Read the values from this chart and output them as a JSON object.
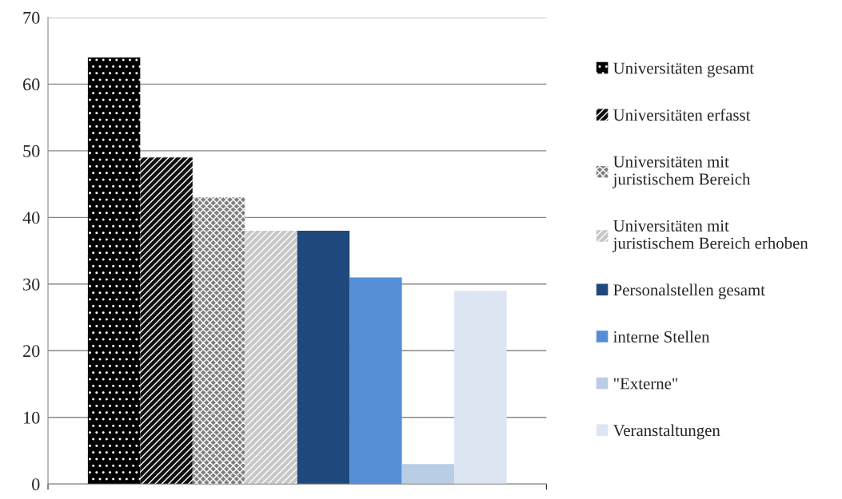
{
  "chart_data": {
    "type": "bar",
    "categories": [
      null
    ],
    "series": [
      {
        "name": "Universitäten gesamt",
        "color": "#000000",
        "values": [
          64
        ]
      },
      {
        "name": "Universitäten erfasst",
        "color": "#111111",
        "values": [
          49
        ]
      },
      {
        "name": "Universitäten mit juristischem Bereich",
        "color": "#7f7f7f",
        "values": [
          43
        ]
      },
      {
        "name": "Universitäten mit juristischem Bereich erhoben",
        "color": "#c8c8c8",
        "values": [
          38
        ]
      },
      {
        "name": "Personalstellen gesamt",
        "color": "#1f497d",
        "values": [
          38
        ]
      },
      {
        "name": "interne Stellen",
        "color": "#558ed5",
        "values": [
          31
        ]
      },
      {
        "name": "\"Externe\"",
        "color": "#b9cde5",
        "values": [
          3
        ]
      },
      {
        "name": "Veranstaltungen",
        "color": "#dce6f2",
        "values": [
          29
        ]
      }
    ],
    "ylim": [
      0,
      70
    ],
    "yticks": [
      0,
      10,
      20,
      30,
      40,
      50,
      60,
      70
    ],
    "grid": "y",
    "legend": "right"
  }
}
